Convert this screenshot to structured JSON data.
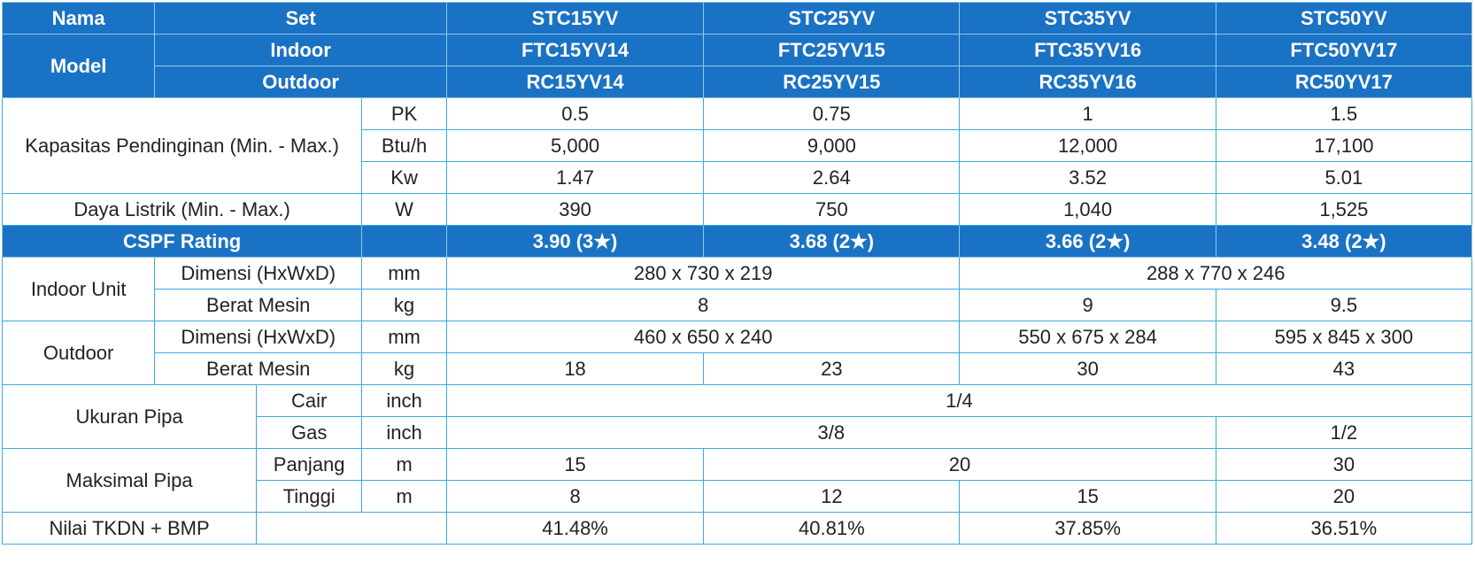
{
  "header": {
    "nama_label": "Nama",
    "set_label": "Set",
    "model_label": "Model",
    "indoor_label": "Indoor",
    "outdoor_label": "Outdoor",
    "sets": [
      "STC15YV",
      "STC25YV",
      "STC35YV",
      "STC50YV"
    ],
    "indoor_models": [
      "FTC15YV14",
      "FTC25YV15",
      "FTC35YV16",
      "FTC50YV17"
    ],
    "outdoor_models": [
      "RC15YV14",
      "RC25YV15",
      "RC35YV16",
      "RC50YV17"
    ]
  },
  "cooling": {
    "label": "Kapasitas Pendinginan (Min. - Max.)",
    "pk": {
      "unit": "PK",
      "values": [
        "0.5",
        "0.75",
        "1",
        "1.5"
      ]
    },
    "btu": {
      "unit": "Btu/h",
      "values": [
        "5,000",
        "9,000",
        "12,000",
        "17,100"
      ]
    },
    "kw": {
      "unit": "Kw",
      "values": [
        "1.47",
        "2.64",
        "3.52",
        "5.01"
      ]
    }
  },
  "power": {
    "label": "Daya Listrik (Min. - Max.)",
    "unit": "W",
    "values": [
      "390",
      "750",
      "1,040",
      "1,525"
    ]
  },
  "cspf": {
    "label": "CSPF Rating",
    "values": [
      "3.90 (3★)",
      "3.68 (2★)",
      "3.66 (2★)",
      "3.48 (2★)"
    ]
  },
  "indoor_unit": {
    "label": "Indoor Unit",
    "dim_label": "Dimensi (HxWxD)",
    "dim_unit": "mm",
    "dim_a": "280 x 730 x 219",
    "dim_b": "288 x 770 x 246",
    "weight_label": "Berat Mesin",
    "weight_unit": "kg",
    "weight_a": "8",
    "weight_b": "9",
    "weight_c": "9.5"
  },
  "outdoor_unit": {
    "label": "Outdoor",
    "dim_label": "Dimensi (HxWxD)",
    "dim_unit": "mm",
    "dim_a": "460 x 650 x 240",
    "dim_b": "550 x 675 x 284",
    "dim_c": "595 x 845 x 300",
    "weight_label": "Berat Mesin",
    "weight_unit": "kg",
    "weights": [
      "18",
      "23",
      "30",
      "43"
    ]
  },
  "pipe_size": {
    "label": "Ukuran Pipa",
    "liquid_label": "Cair",
    "liquid_unit": "inch",
    "liquid_value": "1/4",
    "gas_label": "Gas",
    "gas_unit": "inch",
    "gas_a": "3/8",
    "gas_b": "1/2"
  },
  "max_pipe": {
    "label": "Maksimal Pipa",
    "length_label": "Panjang",
    "length_unit": "m",
    "length_a": "15",
    "length_b": "20",
    "length_c": "30",
    "height_label": "Tinggi",
    "height_unit": "m",
    "heights": [
      "8",
      "12",
      "15",
      "20"
    ]
  },
  "tkdn": {
    "label": "Nilai TKDN + BMP",
    "values": [
      "41.48%",
      "40.81%",
      "37.85%",
      "36.51%"
    ]
  }
}
